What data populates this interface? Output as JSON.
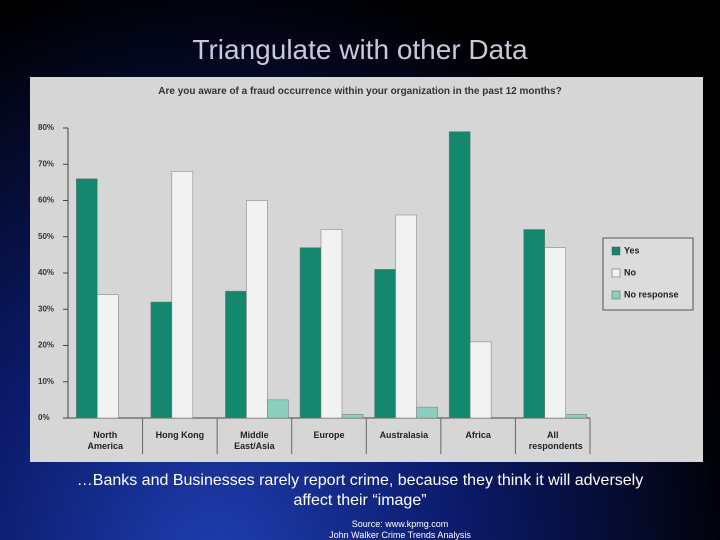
{
  "title": "Triangulate with other Data",
  "chart_data": {
    "type": "bar",
    "title": "Are you aware of a fraud occurrence within your organization in the past 12 months?",
    "categories": [
      "North America",
      "Hong Kong",
      "Middle East/Asia",
      "Europe",
      "Australasia",
      "Africa",
      "All respondents"
    ],
    "series": [
      {
        "name": "Yes",
        "color": "#14876f",
        "values": [
          66,
          32,
          35,
          47,
          41,
          79,
          52
        ]
      },
      {
        "name": "No",
        "color": "#f2f2f2",
        "values": [
          34,
          68,
          60,
          52,
          56,
          21,
          47
        ]
      },
      {
        "name": "No response",
        "color": "#8ccfbf",
        "values": [
          0,
          0,
          5,
          1,
          3,
          0,
          1
        ]
      }
    ],
    "ylim": [
      0,
      80
    ],
    "yticks": [
      {
        "value": 0,
        "label": "0%"
      },
      {
        "value": 10,
        "label": "10%"
      },
      {
        "value": 20,
        "label": "20%"
      },
      {
        "value": 30,
        "label": "30%"
      },
      {
        "value": 40,
        "label": "40%"
      },
      {
        "value": 50,
        "label": "50%"
      },
      {
        "value": 60,
        "label": "60%"
      },
      {
        "value": 70,
        "label": "70%"
      },
      {
        "value": 80,
        "label": "80%"
      }
    ],
    "legend": "right"
  },
  "caption": "…Banks and Businesses rarely report crime, because they think it will adversely affect their “image”",
  "source": "Source: www.kpmg.com",
  "credit": "John Walker Crime Trends Analysis"
}
